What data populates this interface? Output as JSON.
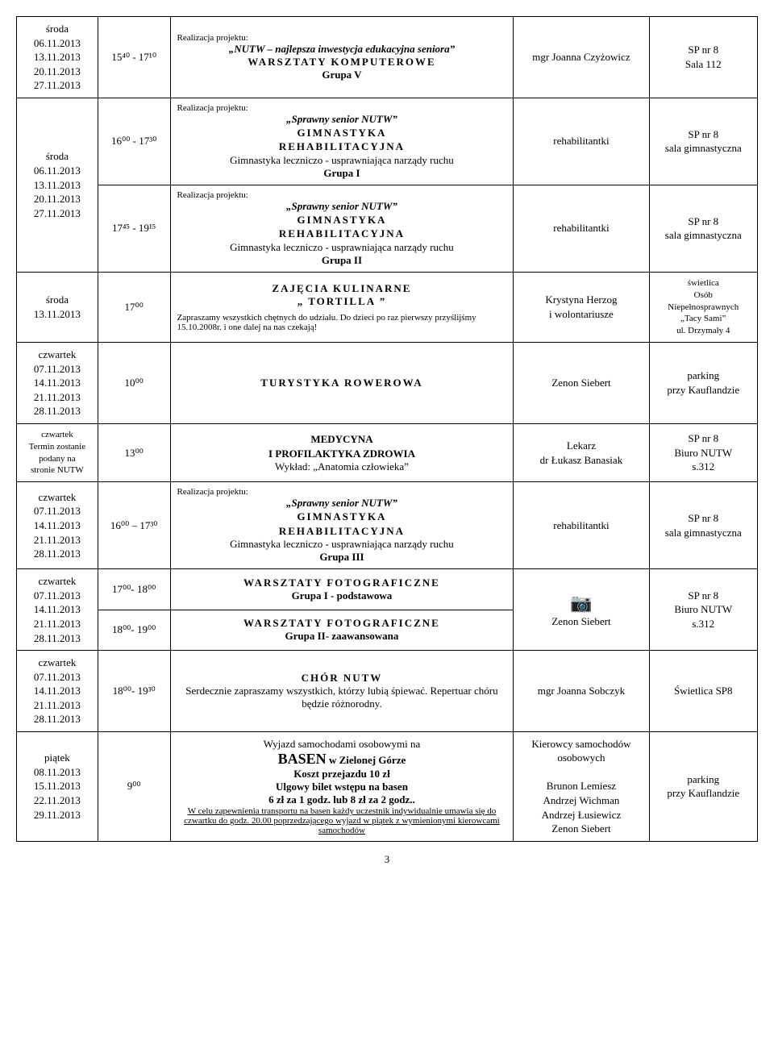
{
  "rows": {
    "r1": {
      "dates": "środa\n06.11.2013\n13.11.2013\n20.11.2013\n27.11.2013",
      "time": "15⁴⁰ - 17¹⁰",
      "proj_label": "Realizacja projektu:",
      "proj_title": "„NUTW – najlepsza inwestycja edukacyjna seniora”",
      "title": "WARSZTATY KOMPUTEROWE",
      "group": "Grupa V",
      "person": "mgr Joanna Czyżowicz",
      "place1": "SP nr 8",
      "place2": "Sala 112"
    },
    "r2": {
      "dates": "środa\n06.11.2013\n13.11.2013\n20.11.2013\n27.11.2013",
      "time_a": "16⁰⁰ - 17³⁰",
      "time_b": "17⁴⁵ - 19¹⁵",
      "proj_label": "Realizacja projektu:",
      "proj_title": "„Sprawny senior NUTW”",
      "title": "GIMNASTYKA\nREHABILITACYJNA",
      "line": "Gimnastyka leczniczo - usprawniająca narządy ruchu",
      "group_a": "Grupa I",
      "group_b": "Grupa II",
      "person": "rehabilitantki",
      "place1": "SP nr 8",
      "place2": "sala gimnastyczna"
    },
    "r3": {
      "dates": "środa\n13.11.2013",
      "time": "17⁰⁰",
      "title": "ZAJĘCIA KULINARNE",
      "subtitle": "„ TORTILLA ”",
      "note": "Zapraszamy wszystkich chętnych do udziału. Do dzieci po raz pierwszy przyślijśmy 15.10.2008r. i one dalej na nas czekają!",
      "person": "Krystyna Herzog\ni wolontariusze",
      "place": "świetlica\nOsób\nNiepełnosprawnych\n„Tacy Sami”\nul. Drzymały 4"
    },
    "r4": {
      "dates": "czwartek\n07.11.2013\n14.11.2013\n21.11.2013\n28.11.2013",
      "time": "10⁰⁰",
      "title": "TURYSTYKA ROWEROWA",
      "person": "Zenon Siebert",
      "place": "parking\nprzy Kauflandzie"
    },
    "r5": {
      "dates": "czwartek\nTermin zostanie\npodany na\nstronie NUTW",
      "time": "13⁰⁰",
      "title": "MEDYCYNA\nI PROFILAKTYKA ZDROWIA",
      "line": "Wykład: „Anatomia człowieka”",
      "person": "Lekarz\ndr Łukasz Banasiak",
      "place": "SP nr 8\nBiuro NUTW\ns.312"
    },
    "r6": {
      "dates": "czwartek\n07.11.2013\n14.11.2013\n21.11.2013\n28.11.2013",
      "time": "16⁰⁰ – 17³⁰",
      "proj_label": "Realizacja projektu:",
      "proj_title": "„Sprawny senior NUTW”",
      "title": "GIMNASTYKA\nREHABILITACYJNA",
      "line": "Gimnastyka leczniczo - usprawniająca narządy ruchu",
      "group": "Grupa III",
      "person": "rehabilitantki",
      "place1": "SP nr 8",
      "place2": "sala gimnastyczna"
    },
    "r7": {
      "dates": "czwartek\n07.11.2013\n14.11.2013\n21.11.2013\n28.11.2013",
      "time_a": "17⁰⁰- 18⁰⁰",
      "time_b": "18⁰⁰- 19⁰⁰",
      "title_a": "WARSZTATY FOTOGRAFICZNE",
      "sub_a": "Grupa I - podstawowa",
      "title_b": "WARSZTATY FOTOGRAFICZNE",
      "sub_b": "Grupa II- zaawansowana",
      "person": "Zenon  Siebert",
      "place": "SP nr 8\nBiuro NUTW\ns.312",
      "icon": "📷"
    },
    "r8": {
      "dates": "czwartek\n07.11.2013\n14.11.2013\n21.11.2013\n28.11.2013",
      "time": "18⁰⁰- 19³⁰",
      "title": "CHÓR NUTW",
      "line": "Serdecznie zapraszamy wszystkich, którzy lubią śpiewać. Repertuar chóru będzie różnorodny.",
      "person": "mgr Joanna Sobczyk",
      "place": "Świetlica SP8"
    },
    "r9": {
      "dates": "piątek\n08.11.2013\n15.11.2013\n22.11.2013\n29.11.2013",
      "time": "9⁰⁰",
      "line1": "Wyjazd samochodami osobowymi na",
      "basen": "BASEN",
      "basen_in": " w Zielonej Górze",
      "line2": "Koszt przejazdu 10 zł",
      "line3": "Ulgowy bilet wstępu na basen",
      "line4": "6 zł za 1 godz. lub 8 zł za 2 godz..",
      "note": "W celu zapewnienia transportu na basen każdy uczestnik indywidualnie umawia się do czwartku do godz. 20.00 poprzedzającego wyjazd w piątek z wymienionymi kierowcami samochodów",
      "person": "Kierowcy samochodów\nosobowych\n\nBrunon Lemiesz\nAndrzej Wichman\nAndrzej Łusiewicz\nZenon Siebert",
      "place": "parking\nprzy Kauflandzie"
    }
  },
  "page_number": "3"
}
